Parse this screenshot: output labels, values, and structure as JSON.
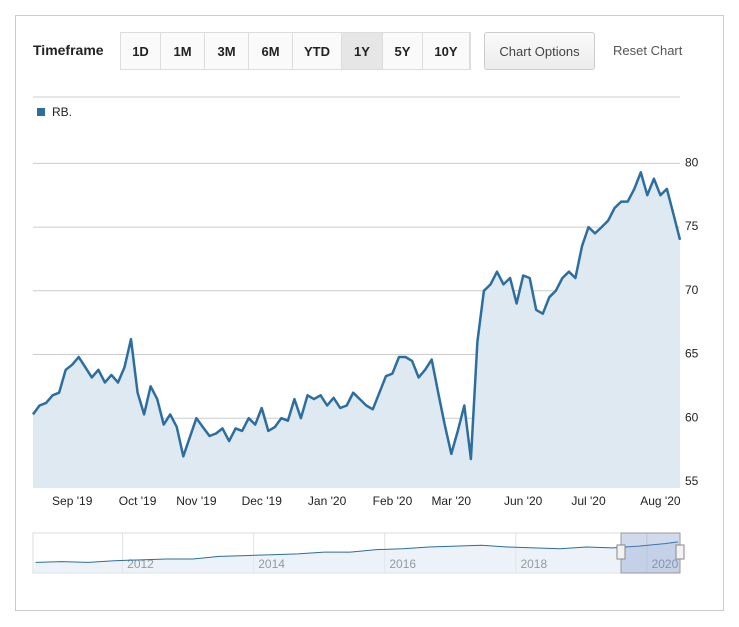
{
  "toolbar": {
    "label": "Timeframe",
    "buttons": [
      "1D",
      "1M",
      "3M",
      "6M",
      "YTD",
      "1Y",
      "5Y",
      "10Y"
    ],
    "selected_index": 5,
    "options_button": "Chart Options",
    "reset_button": "Reset Chart"
  },
  "chart_data": {
    "type": "line",
    "categories": [
      null,
      null,
      null,
      null,
      null,
      null,
      "Sep '19",
      null,
      null,
      null,
      null,
      null,
      null,
      null,
      null,
      null,
      "Oct '19",
      null,
      null,
      null,
      null,
      null,
      null,
      null,
      null,
      "Nov '19",
      null,
      null,
      null,
      null,
      null,
      null,
      null,
      null,
      null,
      "Dec '19",
      null,
      null,
      null,
      null,
      null,
      null,
      null,
      null,
      null,
      "Jan '20",
      null,
      null,
      null,
      null,
      null,
      null,
      null,
      null,
      null,
      "Feb '20",
      null,
      null,
      null,
      null,
      null,
      null,
      null,
      null,
      "Mar '20",
      null,
      null,
      null,
      null,
      null,
      null,
      null,
      null,
      null,
      null,
      "Jun '20",
      null,
      null,
      null,
      null,
      null,
      null,
      null,
      null,
      null,
      "Jul '20",
      null,
      null,
      null,
      null,
      null,
      null,
      null,
      null,
      null,
      null,
      "Aug '20",
      null,
      null,
      null
    ],
    "series": [
      {
        "name": "RB.",
        "color": "#2b6e9f",
        "values": [
          60.3,
          61.0,
          61.2,
          61.8,
          62.0,
          63.8,
          64.2,
          64.8,
          64.0,
          63.2,
          63.8,
          62.8,
          63.4,
          62.8,
          64.0,
          66.2,
          62.0,
          60.3,
          62.5,
          61.5,
          59.5,
          60.3,
          59.3,
          57.0,
          58.5,
          60.0,
          59.3,
          58.6,
          58.8,
          59.2,
          58.2,
          59.2,
          59.0,
          60.0,
          59.5,
          60.8,
          59.0,
          59.3,
          60.0,
          59.8,
          61.5,
          60.0,
          61.8,
          61.5,
          61.8,
          61.0,
          61.6,
          60.8,
          61.0,
          62.0,
          61.5,
          61.0,
          60.7,
          62.0,
          63.3,
          63.5,
          64.8,
          64.8,
          64.5,
          63.2,
          63.8,
          64.6,
          62.0,
          59.5,
          57.2,
          59.0,
          61.0,
          56.8,
          66.0,
          70.0,
          70.5,
          71.5,
          70.5,
          71.0,
          69.0,
          71.2,
          71.0,
          68.5,
          68.2,
          69.5,
          70.0,
          71.0,
          71.5,
          71.0,
          73.5,
          75.0,
          74.5,
          75.0,
          75.5,
          76.5,
          77.0,
          77.0,
          78.0,
          79.3,
          77.5,
          78.8,
          77.5,
          78.0,
          76.0,
          74.0
        ]
      }
    ],
    "ylim": [
      54.6,
      80.5
    ],
    "yticks": [
      55,
      60,
      65,
      70,
      75,
      80
    ],
    "grid": true,
    "legend": "top-left",
    "area_color": "#dfe9f2"
  },
  "navigator": {
    "x": [
      2010.4,
      2010.8,
      2011.2,
      2011.6,
      2012.0,
      2012.4,
      2012.8,
      2013.2,
      2013.6,
      2014.0,
      2014.4,
      2014.8,
      2015.2,
      2015.6,
      2016.0,
      2016.4,
      2016.8,
      2017.2,
      2017.6,
      2018.0,
      2018.4,
      2018.8,
      2019.2,
      2019.6,
      2020.0,
      2020.2
    ],
    "values": [
      40,
      41,
      40,
      42,
      43,
      44,
      44,
      47,
      48,
      49,
      50,
      52,
      52,
      55,
      56,
      58,
      59,
      60,
      58,
      57,
      56,
      58,
      57,
      59,
      62,
      64
    ],
    "xlim": [
      2010.36,
      2020.23
    ],
    "ylim": [
      30,
      72
    ],
    "xticks": [
      2012,
      2014,
      2016,
      2018,
      2020
    ]
  }
}
